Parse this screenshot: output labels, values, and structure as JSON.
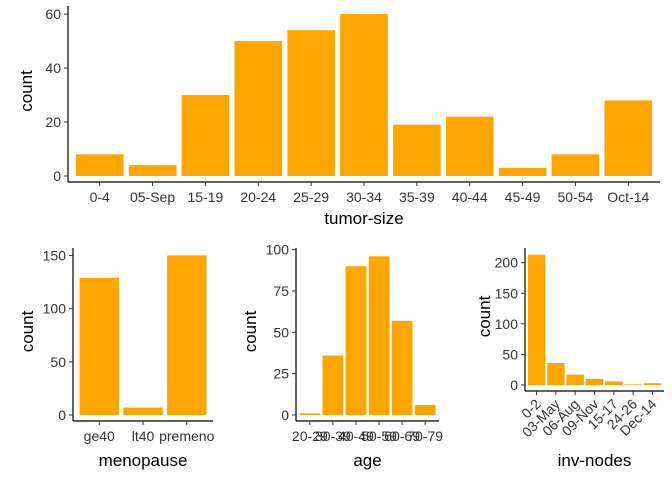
{
  "colors": {
    "bar_fill": "#FFA500",
    "background": "#FFFFFF",
    "axis": "#000000"
  },
  "chart_data": [
    {
      "type": "bar",
      "xlabel": "tumor-size",
      "ylabel": "count",
      "categories": [
        "0-4",
        "05-Sep",
        "15-19",
        "20-24",
        "25-29",
        "30-34",
        "35-39",
        "40-44",
        "45-49",
        "50-54",
        "Oct-14"
      ],
      "values": [
        8,
        4,
        30,
        50,
        54,
        60,
        19,
        22,
        3,
        8,
        28
      ],
      "ylim": [
        0,
        63
      ],
      "yticks": [
        0,
        20,
        40,
        60
      ],
      "tick_rotation": 0,
      "grid": false
    },
    {
      "type": "bar",
      "xlabel": "menopause",
      "ylabel": "count",
      "categories": [
        "ge40",
        "lt40",
        "premeno"
      ],
      "values": [
        129,
        7,
        150
      ],
      "ylim": [
        0,
        157
      ],
      "yticks": [
        0,
        50,
        100,
        150
      ],
      "tick_rotation": 0,
      "grid": false
    },
    {
      "type": "bar",
      "xlabel": "age",
      "ylabel": "count",
      "categories": [
        "20-29",
        "30-39",
        "40-49",
        "50-59",
        "60-69",
        "70-79"
      ],
      "values": [
        1,
        36,
        90,
        96,
        57,
        6
      ],
      "ylim": [
        0,
        101
      ],
      "yticks": [
        0,
        25,
        50,
        75,
        100
      ],
      "tick_rotation": 0,
      "grid": false
    },
    {
      "type": "bar",
      "xlabel": "inv-nodes",
      "ylabel": "count",
      "categories": [
        "0-2",
        "03-May",
        "06-Aug",
        "09-Nov",
        "15-17",
        "24-26",
        "Dec-14"
      ],
      "values": [
        213,
        36,
        17,
        10,
        6,
        1,
        3
      ],
      "ylim": [
        0,
        224
      ],
      "yticks": [
        0,
        50,
        100,
        150,
        200
      ],
      "tick_rotation": -45,
      "grid": false
    }
  ]
}
